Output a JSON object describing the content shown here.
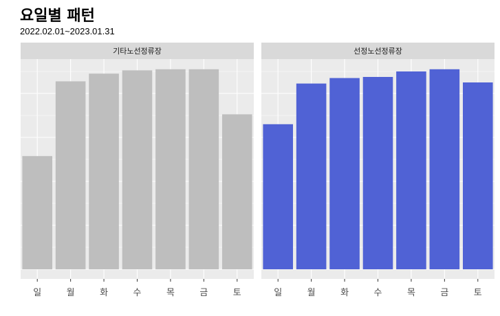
{
  "chart_data": {
    "type": "bar",
    "title": "요일별 패턴",
    "subtitle": "2022.02.01~2023.01.31",
    "categories": [
      "일",
      "월",
      "화",
      "수",
      "목",
      "금",
      "토"
    ],
    "ylim": [
      0,
      100
    ],
    "grid": true,
    "facets": [
      {
        "name": "기타노선정류장",
        "color": "#bebebe",
        "values": [
          51.5,
          85.5,
          89.0,
          90.5,
          91.0,
          91.0,
          70.5
        ]
      },
      {
        "name": "선정노선정류장",
        "color": "#5062d5",
        "values": [
          66.0,
          84.5,
          87.0,
          87.5,
          90.0,
          91.0,
          85.0
        ]
      }
    ]
  }
}
